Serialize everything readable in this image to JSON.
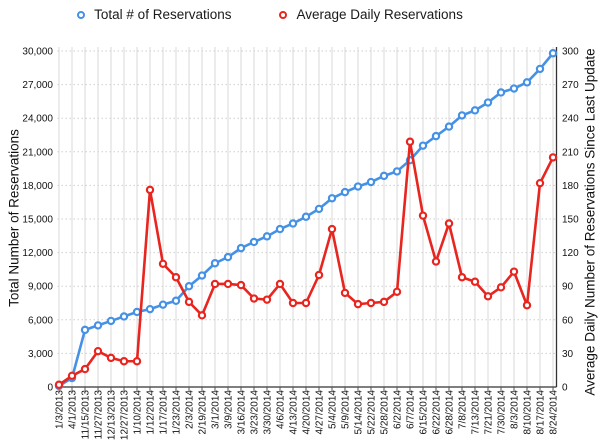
{
  "legend": {
    "items": [
      {
        "label": "Total # of Reservations",
        "color": "#4591e6"
      },
      {
        "label": "Average Daily Reservations",
        "color": "#e8251f"
      }
    ]
  },
  "chart_data": {
    "type": "line",
    "title": "",
    "legend_position": "top",
    "grid": {
      "vertical": "solid-light",
      "horizontal": "dotted-light"
    },
    "categories": [
      "1/3/2013",
      "4/1/2013",
      "11/15/2013",
      "11/27/2013",
      "12/13/2013",
      "12/27/2013",
      "1/10/2014",
      "1/12/2014",
      "1/17/2014",
      "1/23/2014",
      "2/3/2014",
      "2/19/2014",
      "3/1/2014",
      "3/9/2014",
      "3/16/2014",
      "3/23/2014",
      "3/30/2014",
      "4/6/2014",
      "4/13/2014",
      "4/20/2014",
      "4/27/2014",
      "5/4/2014",
      "5/9/2014",
      "5/14/2014",
      "5/22/2014",
      "5/28/2014",
      "6/2/2014",
      "6/7/2014",
      "6/15/2014",
      "6/22/2014",
      "6/28/2014",
      "7/8/2014",
      "7/13/2014",
      "7/21/2014",
      "7/30/2014",
      "8/3/2014",
      "8/10/2014",
      "8/17/2014",
      "8/24/2014"
    ],
    "series": [
      {
        "name": "Total # of Reservations",
        "axis": "left",
        "color": "#4591e6",
        "marker": "open-circle",
        "values": [
          100,
          800,
          5100,
          5500,
          5900,
          6300,
          6700,
          6950,
          7350,
          7700,
          9000,
          9950,
          11050,
          11600,
          12400,
          12950,
          13450,
          14100,
          14600,
          15200,
          15900,
          16850,
          17400,
          17900,
          18300,
          18850,
          19250,
          20250,
          21550,
          22400,
          23250,
          24250,
          24700,
          25400,
          26300,
          26650,
          27200,
          28400,
          29800
        ]
      },
      {
        "name": "Average Daily Reservations",
        "axis": "right",
        "color": "#e8251f",
        "marker": "open-circle",
        "values": [
          2,
          10,
          16,
          32,
          26,
          23,
          23,
          176,
          110,
          98,
          76,
          64,
          92,
          92,
          91,
          79,
          78,
          92,
          75,
          75,
          100,
          141,
          84,
          74,
          75,
          76,
          85,
          219,
          153,
          112,
          146,
          98,
          94,
          81,
          89,
          103,
          73,
          182,
          205
        ]
      }
    ],
    "left_axis": {
      "label": "Total Number of Reservations",
      "min": 0,
      "max": 30000,
      "step": 3000,
      "tick_labels": [
        "0",
        "3,000",
        "6,000",
        "9,000",
        "12,000",
        "15,000",
        "18,000",
        "21,000",
        "24,000",
        "27,000",
        "30,000"
      ]
    },
    "right_axis": {
      "label": "Average Daily Number of Reservations Since Last Update",
      "min": 0,
      "max": 300,
      "step": 30,
      "tick_labels": [
        "0",
        "30",
        "60",
        "90",
        "120",
        "150",
        "180",
        "210",
        "240",
        "270",
        "300"
      ]
    }
  }
}
